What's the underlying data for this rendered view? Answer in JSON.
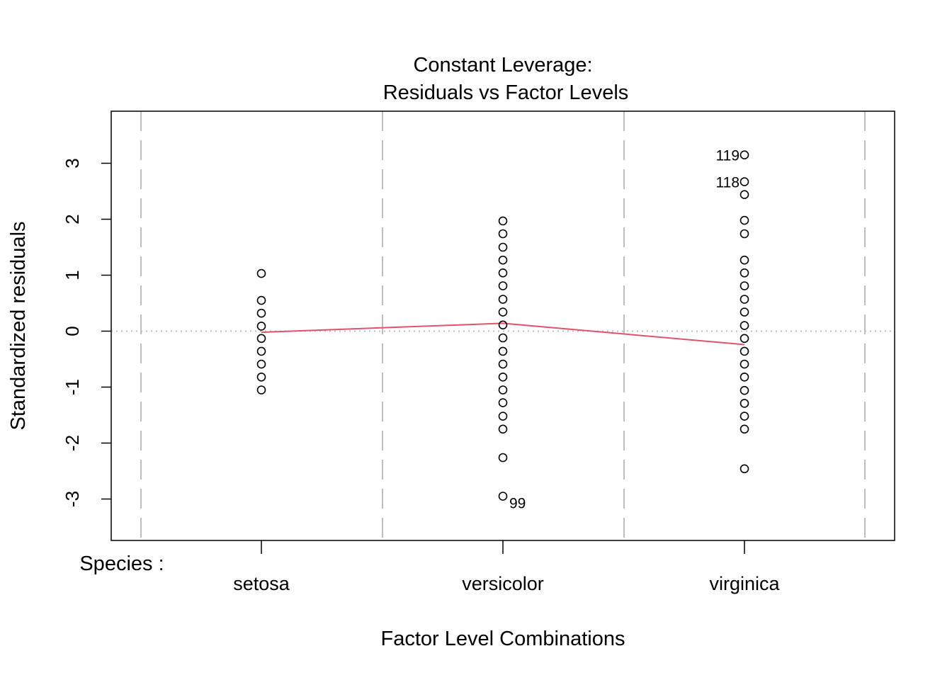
{
  "chart_data": {
    "type": "scatter",
    "title_line1": "Constant Leverage:",
    "title_line2": "Residuals vs Factor Levels",
    "xlabel": "Factor Level Combinations",
    "ylabel": "Standardized residuals",
    "factor_name": "Species :",
    "categories": [
      "setosa",
      "versicolor",
      "virginica"
    ],
    "ylim": [
      -3.7,
      3.9
    ],
    "yticks": [
      -3,
      -2,
      -1,
      0,
      1,
      2,
      3
    ],
    "grid": "vertical dashed lines between factor levels",
    "reference_line": 0,
    "points": [
      {
        "category": "setosa",
        "y": [
          1.03,
          0.55,
          0.32,
          0.09,
          -0.13,
          -0.36,
          -0.59,
          -0.82,
          -1.05
        ]
      },
      {
        "category": "versicolor",
        "y": [
          1.97,
          1.74,
          1.5,
          1.27,
          1.04,
          0.81,
          0.57,
          0.34,
          0.11,
          -0.12,
          -0.36,
          -0.59,
          -0.82,
          -1.05,
          -1.28,
          -1.52,
          -1.75,
          -2.26,
          -2.95
        ]
      },
      {
        "category": "virginica",
        "y": [
          3.15,
          2.67,
          2.44,
          1.98,
          1.74,
          1.27,
          1.04,
          0.81,
          0.57,
          0.34,
          0.1,
          -0.13,
          -0.36,
          -0.59,
          -0.82,
          -1.06,
          -1.29,
          -1.52,
          -1.75,
          -2.46
        ]
      }
    ],
    "labeled_points": [
      {
        "label": "119",
        "category": "virginica",
        "y": 3.15,
        "side": "left"
      },
      {
        "label": "118",
        "category": "virginica",
        "y": 2.67,
        "side": "left"
      },
      {
        "label": "99",
        "category": "versicolor",
        "y": -2.95,
        "side": "right"
      }
    ],
    "smooth_line": {
      "color": "#DF536B",
      "points": [
        {
          "category": "setosa",
          "y": -0.02
        },
        {
          "category": "versicolor",
          "y": 0.14
        },
        {
          "category": "virginica",
          "y": -0.24
        }
      ]
    },
    "colors": {
      "grid": "#BEBEBE",
      "reference": "#BEBEBE",
      "smooth": "#DF536B"
    }
  }
}
